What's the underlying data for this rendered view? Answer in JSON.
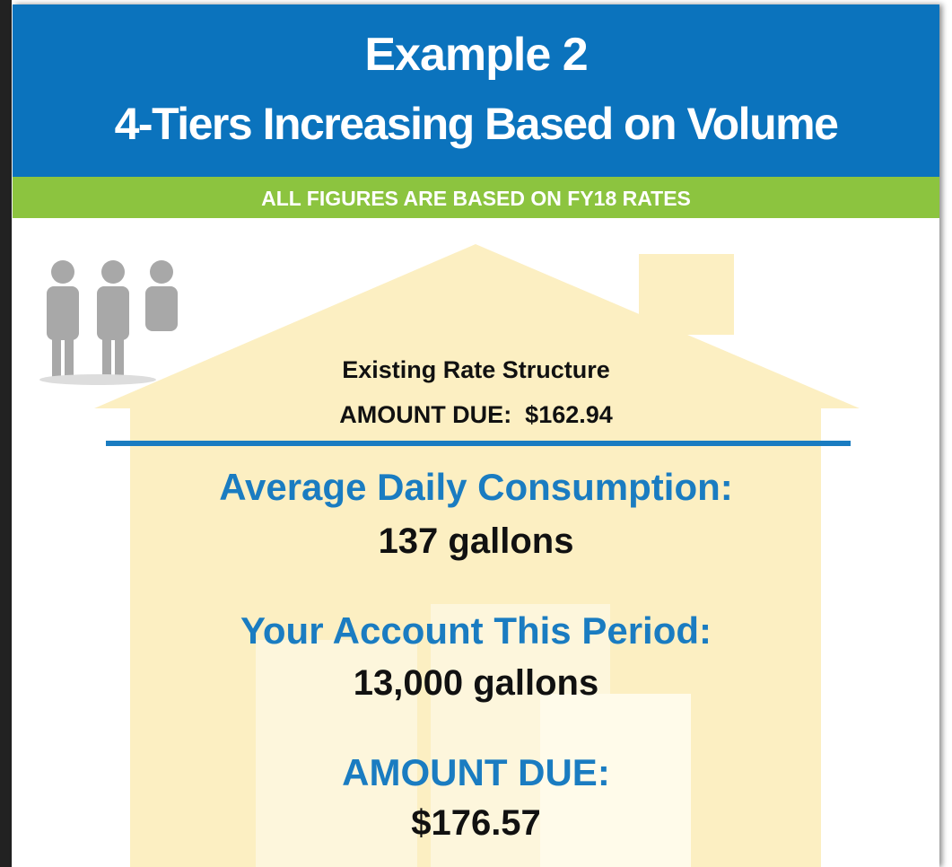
{
  "header": {
    "title_line1": "Example 2",
    "title_line2": "4-Tiers Increasing Based on Volume"
  },
  "banner": "ALL FIGURES ARE BASED ON FY18 RATES",
  "existing": {
    "label": "Existing Rate Structure",
    "amount_due": "AMOUNT DUE:  $162.94"
  },
  "average_daily": {
    "label": "Average Daily Consumption:",
    "value": "137 gallons"
  },
  "account_period": {
    "label": "Your Account This Period:",
    "value": "13,000 gallons"
  },
  "amount_due": {
    "label": "AMOUNT DUE:",
    "value": "$176.57"
  }
}
